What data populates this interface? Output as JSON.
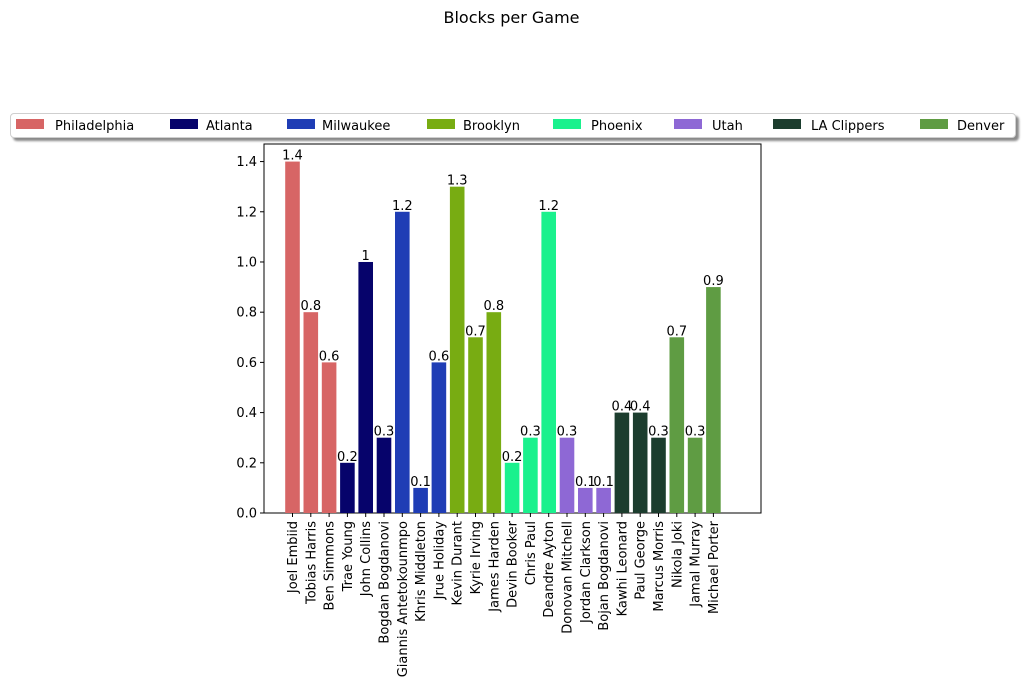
{
  "chart_data": {
    "type": "bar",
    "title": "Blocks per Game",
    "xlabel": "",
    "ylabel": "",
    "ylim": [
      0,
      1.47
    ],
    "yticks": [
      "0.0",
      "0.2",
      "0.4",
      "0.6",
      "0.8",
      "1.0",
      "1.2",
      "1.4"
    ],
    "legend_position": "top",
    "categories": [
      "Joel Embiid",
      "Tobias Harris",
      "Ben Simmons",
      "Trae Young",
      "John Collins",
      "Bogdan Bogdanovi",
      "Giannis Antetokounmpo",
      "Khris Middleton",
      "Jrue Holiday",
      "Kevin Durant",
      "Kyrie Irving",
      "James Harden",
      "Devin Booker",
      "Chris Paul",
      "Deandre Ayton",
      "Donovan Mitchell",
      "Jordan Clarkson",
      "Bojan Bogdanovi",
      "Kawhi Leonard",
      "Paul George",
      "Marcus Morris",
      "Nikola Joki",
      "Jamal Murray",
      "Michael Porter"
    ],
    "values": [
      1.4,
      0.8,
      0.6,
      0.2,
      1,
      0.3,
      1.2,
      0.1,
      0.6,
      1.3,
      0.7,
      0.8,
      0.2,
      0.3,
      1.2,
      0.3,
      0.1,
      0.1,
      0.4,
      0.4,
      0.3,
      0.7,
      0.3,
      0.9
    ],
    "value_labels": [
      "1.4",
      "0.8",
      "0.6",
      "0.2",
      "1",
      "0.3",
      "1.2",
      "0.1",
      "0.6",
      "1.3",
      "0.7",
      "0.8",
      "0.2",
      "0.3",
      "1.2",
      "0.3",
      "0.1",
      "0.1",
      "0.4",
      "0.4",
      "0.3",
      "0.7",
      "0.3",
      "0.9"
    ],
    "team_index": [
      0,
      0,
      0,
      1,
      1,
      1,
      2,
      2,
      2,
      3,
      3,
      3,
      4,
      4,
      4,
      5,
      5,
      5,
      6,
      6,
      6,
      7,
      7,
      7
    ],
    "series": [
      {
        "name": "Philadelphia",
        "color": "#d76565"
      },
      {
        "name": "Atlanta",
        "color": "#06036b"
      },
      {
        "name": "Milwaukee",
        "color": "#1f3db5"
      },
      {
        "name": "Brooklyn",
        "color": "#78ac12"
      },
      {
        "name": "Phoenix",
        "color": "#1af18d"
      },
      {
        "name": "Utah",
        "color": "#8e68d5"
      },
      {
        "name": "LA Clippers",
        "color": "#1c3d2e"
      },
      {
        "name": "Denver",
        "color": "#5f9c43"
      }
    ]
  }
}
